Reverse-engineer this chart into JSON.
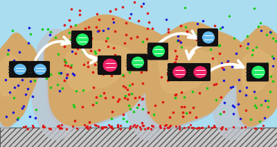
{
  "bg_color": "#aaddf0",
  "biofilm_color": "#d4a868",
  "shadow_color": "#b8b8c0",
  "surface_bg": "#cccccc",
  "dot_red": "#e01010",
  "dot_green": "#10cc10",
  "dot_blue": "#1010e0",
  "bact_cyan": "#66bbee",
  "bact_pink": "#ee2266",
  "bact_green": "#22ee66",
  "arrow_color": "#ffffff",
  "figsize": [
    4.0,
    2.12
  ],
  "dpi": 100
}
